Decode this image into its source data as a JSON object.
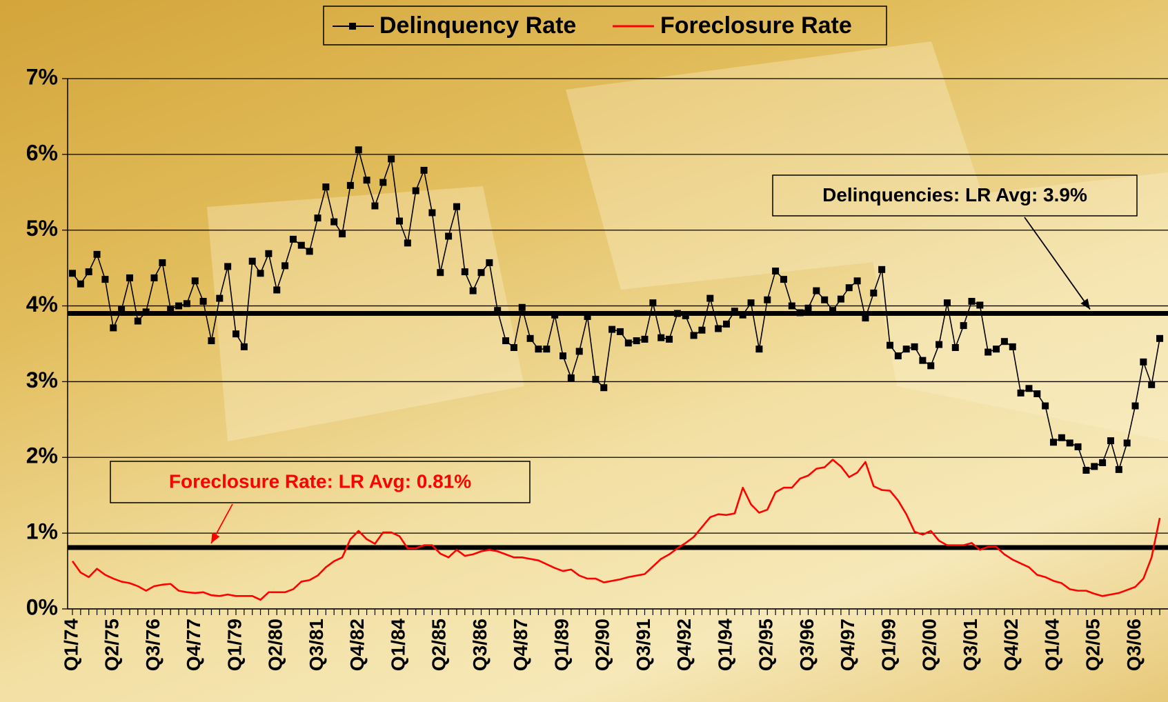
{
  "chart_data": {
    "type": "line",
    "categories": [
      "Q1/74",
      null,
      null,
      null,
      null,
      "Q2/75",
      null,
      null,
      null,
      null,
      "Q3/76",
      null,
      null,
      null,
      null,
      "Q4/77",
      null,
      null,
      null,
      null,
      "Q1/79",
      null,
      null,
      null,
      null,
      "Q2/80",
      null,
      null,
      null,
      null,
      "Q3/81",
      null,
      null,
      null,
      null,
      "Q4/82",
      null,
      null,
      null,
      null,
      "Q1/84",
      null,
      null,
      null,
      null,
      "Q2/85",
      null,
      null,
      null,
      null,
      "Q3/86",
      null,
      null,
      null,
      null,
      "Q4/87",
      null,
      null,
      null,
      null,
      "Q1/89",
      null,
      null,
      null,
      null,
      "Q2/90",
      null,
      null,
      null,
      null,
      "Q3/91",
      null,
      null,
      null,
      null,
      "Q4/92",
      null,
      null,
      null,
      null,
      "Q1/94",
      null,
      null,
      null,
      null,
      "Q2/95",
      null,
      null,
      null,
      null,
      "Q3/96",
      null,
      null,
      null,
      null,
      "Q4/97",
      null,
      null,
      null,
      null,
      "Q1/99",
      null,
      null,
      null,
      null,
      "Q2/00",
      null,
      null,
      null,
      null,
      "Q3/01",
      null,
      null,
      null,
      null,
      "Q4/02",
      null,
      null,
      null,
      null,
      "Q1/04",
      null,
      null,
      null,
      null,
      "Q2/05",
      null,
      null,
      null,
      null,
      "Q3/06",
      null,
      null,
      null
    ],
    "series": [
      {
        "name": "Delinquency Rate",
        "color": "#000000",
        "marker": "square",
        "values": [
          4.43,
          4.29,
          4.45,
          4.68,
          4.35,
          3.71,
          3.95,
          4.37,
          3.8,
          3.92,
          4.37,
          4.57,
          3.96,
          4.0,
          4.03,
          4.33,
          4.06,
          3.54,
          4.1,
          4.52,
          3.63,
          3.46,
          4.59,
          4.43,
          4.69,
          4.21,
          4.53,
          4.88,
          4.8,
          4.72,
          5.16,
          5.57,
          5.11,
          4.95,
          5.59,
          6.06,
          5.66,
          5.32,
          5.63,
          5.94,
          5.12,
          4.83,
          5.52,
          5.79,
          5.23,
          4.44,
          4.92,
          5.31,
          4.45,
          4.2,
          4.44,
          4.57,
          3.94,
          3.54,
          3.45,
          3.98,
          3.57,
          3.43,
          3.43,
          3.88,
          3.34,
          3.05,
          3.4,
          3.86,
          3.03,
          2.92,
          3.69,
          3.66,
          3.51,
          3.54,
          3.56,
          4.04,
          3.58,
          3.56,
          3.9,
          3.87,
          3.61,
          3.68,
          4.1,
          3.7,
          3.76,
          3.93,
          3.88,
          4.04,
          3.43,
          4.08,
          4.46,
          4.35,
          4.0,
          3.91,
          3.97,
          4.2,
          4.08,
          3.94,
          4.09,
          4.24,
          4.33,
          3.84,
          4.17,
          4.48,
          3.48,
          3.34,
          3.43,
          3.46,
          3.28,
          3.21,
          3.49,
          4.04,
          3.45,
          3.74,
          4.06,
          4.01,
          3.39,
          3.43,
          3.53,
          3.46,
          2.85,
          2.91,
          2.84,
          2.68,
          2.2,
          2.26,
          2.19,
          2.14,
          1.83,
          1.88,
          1.93,
          2.22,
          1.84,
          2.19,
          2.68,
          3.26,
          2.96,
          3.57
        ]
      },
      {
        "name": "Foreclosure Rate",
        "color": "#ff0000",
        "marker": "none",
        "values": [
          0.63,
          0.48,
          0.42,
          0.53,
          0.45,
          0.4,
          0.36,
          0.34,
          0.3,
          0.24,
          0.3,
          0.32,
          0.33,
          0.24,
          0.22,
          0.21,
          0.22,
          0.18,
          0.17,
          0.19,
          0.17,
          0.17,
          0.17,
          0.12,
          0.22,
          0.22,
          0.22,
          0.26,
          0.36,
          0.38,
          0.44,
          0.55,
          0.63,
          0.68,
          0.92,
          1.03,
          0.92,
          0.86,
          1.01,
          1.01,
          0.96,
          0.8,
          0.8,
          0.84,
          0.84,
          0.73,
          0.68,
          0.78,
          0.7,
          0.72,
          0.76,
          0.78,
          0.76,
          0.72,
          0.68,
          0.68,
          0.66,
          0.64,
          0.59,
          0.54,
          0.5,
          0.52,
          0.44,
          0.4,
          0.4,
          0.35,
          0.37,
          0.39,
          0.42,
          0.44,
          0.46,
          0.56,
          0.66,
          0.72,
          0.8,
          0.87,
          0.95,
          1.08,
          1.21,
          1.25,
          1.24,
          1.26,
          1.6,
          1.38,
          1.27,
          1.31,
          1.54,
          1.6,
          1.6,
          1.72,
          1.76,
          1.85,
          1.87,
          1.97,
          1.88,
          1.74,
          1.8,
          1.94,
          1.62,
          1.57,
          1.56,
          1.43,
          1.25,
          1.02,
          0.98,
          1.03,
          0.9,
          0.84,
          0.84,
          0.84,
          0.87,
          0.78,
          0.82,
          0.82,
          0.72,
          0.65,
          0.6,
          0.55,
          0.45,
          0.42,
          0.37,
          0.34,
          0.26,
          0.24,
          0.24,
          0.2,
          0.17,
          0.19,
          0.21,
          0.25,
          0.29,
          0.4,
          0.68,
          1.2
        ]
      }
    ],
    "reference_lines": [
      {
        "value": 3.9,
        "color": "#000000",
        "annotation": "Delinquencies: LR Avg: 3.9%",
        "annotation_color": "#000000"
      },
      {
        "value": 0.81,
        "color": "#000000",
        "annotation": "Foreclosure Rate: LR Avg: 0.81%",
        "annotation_color": "#ff0000"
      }
    ],
    "ylim": [
      0,
      7
    ],
    "yticks": [
      {
        "value": 0,
        "label": "0%"
      },
      {
        "value": 1,
        "label": "1%"
      },
      {
        "value": 2,
        "label": "2%"
      },
      {
        "value": 3,
        "label": "3%"
      },
      {
        "value": 4,
        "label": "4%"
      },
      {
        "value": 5,
        "label": "5%"
      },
      {
        "value": 6,
        "label": "6%"
      },
      {
        "value": 7,
        "label": "7%"
      }
    ],
    "grid": true,
    "legend": "top"
  }
}
